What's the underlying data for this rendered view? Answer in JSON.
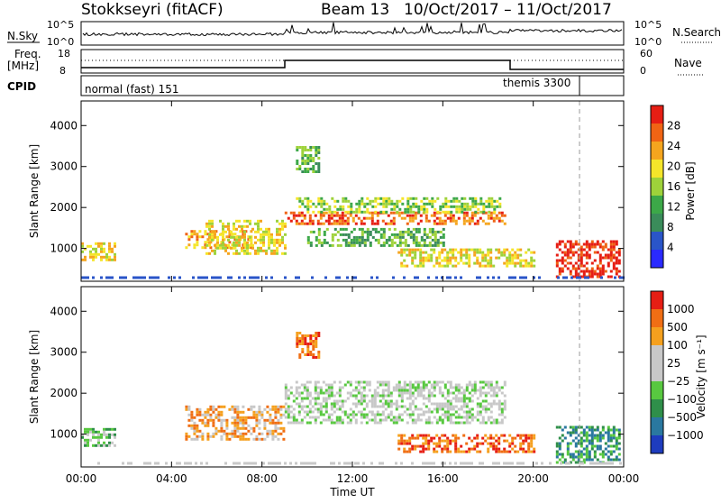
{
  "header": {
    "station": "Stokkseyri (fitACF)",
    "beam": "Beam 13",
    "date_range": "10/Oct/2017 – 11/Oct/2017"
  },
  "nsky_panel": {
    "left_label": "N.Sky",
    "left_top": "10^5",
    "left_bottom": "10^0",
    "right_top": "10^5",
    "right_bottom": "10^0",
    "right_label": "N.Search"
  },
  "freq_panel": {
    "left_label_1": "Freq.",
    "left_label_2": "[MHz]",
    "left_top": "18",
    "left_bottom": "8",
    "right_top": "60",
    "right_bottom": "0",
    "right_label": "Nave"
  },
  "cpid_panel": {
    "label": "CPID",
    "mode_1": "normal (fast) 151",
    "mode_2": "themis 3300"
  },
  "colors": {
    "power_scale": [
      "#2a2aff",
      "#2a55c8",
      "#3a8c5a",
      "#3ca848",
      "#9ed23a",
      "#f5e52a",
      "#f5a51e",
      "#f06414",
      "#e61e14"
    ],
    "velocity_scale": [
      "#1e3cbe",
      "#2a78a0",
      "#2f8f4a",
      "#58c840",
      "#c8c8c8",
      "#c8c8c8",
      "#f5a01e",
      "#f06e14",
      "#e61e14"
    ]
  },
  "chart_data": [
    {
      "type": "heatmap",
      "name": "power",
      "ylabel": "Slant Range [km]",
      "xlabel": "Time UT",
      "x_ticks": [
        "00:00",
        "04:00",
        "08:00",
        "12:00",
        "16:00",
        "20:00",
        "00:00"
      ],
      "y_ticks": [
        1000,
        2000,
        3000,
        4000
      ],
      "ylim": [
        200,
        4600
      ],
      "xlim_hours": [
        0,
        24
      ],
      "colorbar_label": "Power [dB]",
      "colorbar_ticks": [
        4,
        8,
        12,
        16,
        20,
        24,
        28
      ],
      "colorbar_range": [
        0,
        32
      ],
      "echo_regions": [
        {
          "t0": 0.0,
          "t1": 1.5,
          "r0": 750,
          "r1": 1150,
          "level": 5
        },
        {
          "t0": 4.6,
          "t1": 7.5,
          "r0": 1050,
          "r1": 1450,
          "level": 6
        },
        {
          "t0": 5.5,
          "t1": 9.0,
          "r0": 900,
          "r1": 1700,
          "level": 5
        },
        {
          "t0": 9.0,
          "t1": 18.8,
          "r0": 1600,
          "r1": 1900,
          "level": 7
        },
        {
          "t0": 9.5,
          "t1": 18.5,
          "r0": 1900,
          "r1": 2250,
          "level": 4
        },
        {
          "t0": 10.0,
          "t1": 16.0,
          "r0": 1100,
          "r1": 1500,
          "level": 3
        },
        {
          "t0": 14.0,
          "t1": 20.0,
          "r0": 600,
          "r1": 1000,
          "level": 5
        },
        {
          "t0": 21.0,
          "t1": 23.8,
          "r0": 300,
          "r1": 1200,
          "level": 8
        },
        {
          "t0": 9.5,
          "t1": 10.5,
          "r0": 2900,
          "r1": 3500,
          "level": 3
        }
      ]
    },
    {
      "type": "heatmap",
      "name": "velocity",
      "ylabel": "Slant Range [km]",
      "xlabel": "Time UT",
      "x_ticks": [
        "00:00",
        "04:00",
        "08:00",
        "12:00",
        "16:00",
        "20:00",
        "00:00"
      ],
      "y_ticks": [
        1000,
        2000,
        3000,
        4000
      ],
      "ylim": [
        200,
        4600
      ],
      "xlim_hours": [
        0,
        24
      ],
      "colorbar_label": "Velocity [m s⁻¹]",
      "colorbar_ticks": [
        "1000",
        "500",
        "100",
        "25",
        "−25",
        "−100",
        "−500",
        "−1000"
      ],
      "echo_regions": [
        {
          "t0": 0.0,
          "t1": 1.5,
          "r0": 750,
          "r1": 1150,
          "level": 3
        },
        {
          "t0": 4.6,
          "t1": 9.0,
          "r0": 900,
          "r1": 1700,
          "level": 6
        },
        {
          "t0": 9.0,
          "t1": 18.8,
          "r0": 1300,
          "r1": 2300,
          "level": 4
        },
        {
          "t0": 14.0,
          "t1": 20.0,
          "r0": 600,
          "r1": 1000,
          "level": 7
        },
        {
          "t0": 21.0,
          "t1": 23.8,
          "r0": 300,
          "r1": 1200,
          "level": 2
        },
        {
          "t0": 9.5,
          "t1": 10.5,
          "r0": 2900,
          "r1": 3500,
          "level": 7
        }
      ]
    }
  ]
}
